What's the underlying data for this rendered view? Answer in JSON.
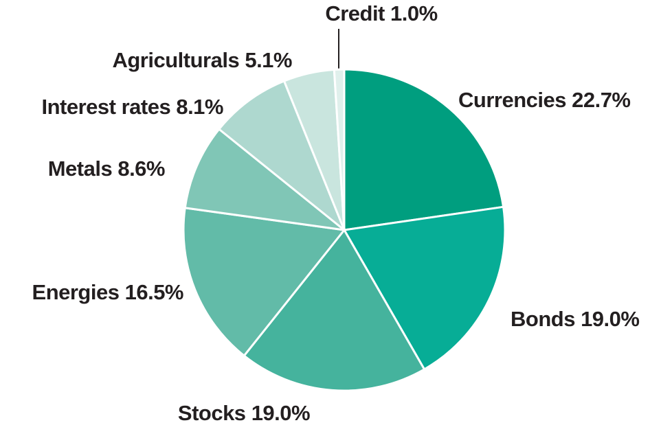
{
  "chart_data": {
    "type": "pie",
    "categories": [
      "Currencies",
      "Bonds",
      "Stocks",
      "Energies",
      "Metals",
      "Interest rates",
      "Agriculturals",
      "Credit"
    ],
    "values": [
      22.7,
      19.0,
      19.0,
      16.5,
      8.6,
      8.1,
      5.1,
      1.0
    ],
    "value_labels": [
      "22.7%",
      "19.0%",
      "19.0%",
      "16.5%",
      "8.6%",
      "8.1%",
      "5.1%",
      "1.0%"
    ],
    "colors": [
      "#009e7f",
      "#07ad96",
      "#45b39d",
      "#62bba8",
      "#80c6b6",
      "#aed8cf",
      "#c9e5de",
      "#e0f0ec"
    ]
  }
}
